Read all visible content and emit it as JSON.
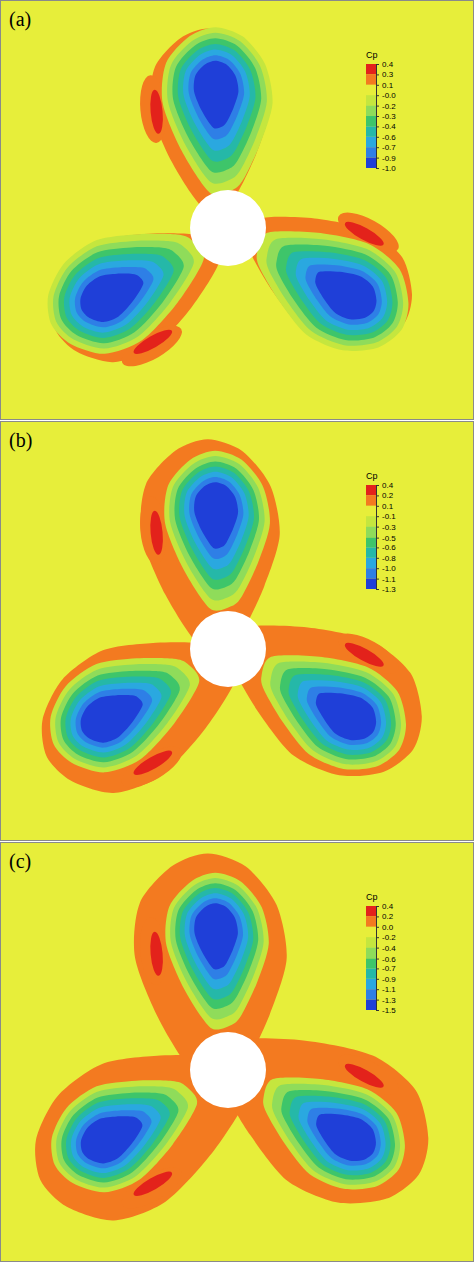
{
  "chart_data": [
    {
      "type": "contour",
      "label": "(a)",
      "colorbar": {
        "title": "Cp",
        "range": [
          -1.0,
          0.4
        ],
        "ticks": [
          0.4,
          {
            "value": 0.26,
            "label": "0.3"
          },
          {
            "value": 0.12,
            "label": "0.1"
          },
          {
            "value": -0.02,
            "label": "-0.0"
          },
          {
            "value": -0.16,
            "label": "-0.2"
          },
          -0.3,
          {
            "value": -0.44,
            "label": "-0.4"
          },
          {
            "value": -0.58,
            "label": "-0.6"
          },
          {
            "value": -0.72,
            "label": "-0.7"
          },
          {
            "value": -0.86,
            "label": "-0.9"
          },
          {
            "value": -1.0,
            "label": "-1.0"
          }
        ]
      },
      "field": {
        "ambient": 0.0,
        "halo": 0.2,
        "stagnation": 0.4,
        "suction_min": -1.0
      }
    },
    {
      "type": "contour",
      "label": "(b)",
      "colorbar": {
        "title": "Cp",
        "range": [
          -1.3,
          0.4
        ],
        "ticks": [
          0.4,
          {
            "value": 0.23,
            "label": "0.2"
          },
          {
            "value": 0.06,
            "label": "0.1"
          },
          {
            "value": -0.11,
            "label": "-0.1"
          },
          {
            "value": -0.28,
            "label": "-0.3"
          },
          {
            "value": -0.46,
            "label": "-0.5"
          },
          {
            "value": -0.62,
            "label": "-0.6"
          },
          {
            "value": -0.79,
            "label": "-0.8"
          },
          {
            "value": -0.96,
            "label": "-1.0"
          },
          {
            "value": -1.13,
            "label": "-1.1"
          },
          -1.3
        ]
      },
      "field": {
        "ambient": 0.0,
        "halo": 0.2,
        "stagnation": 0.4,
        "suction_min": -1.3
      }
    },
    {
      "type": "contour",
      "label": "(c)",
      "colorbar": {
        "title": "Cp",
        "range": [
          -1.5,
          0.4
        ],
        "ticks": [
          0.4,
          {
            "value": 0.21,
            "label": "0.2"
          },
          {
            "value": 0.02,
            "label": "0.0"
          },
          {
            "value": -0.17,
            "label": "-0.2"
          },
          {
            "value": -0.36,
            "label": "-0.4"
          },
          {
            "value": -0.56,
            "label": "-0.6"
          },
          {
            "value": -0.74,
            "label": "-0.7"
          },
          {
            "value": -0.93,
            "label": "-0.9"
          },
          {
            "value": -1.12,
            "label": "-1.1"
          },
          {
            "value": -1.31,
            "label": "-1.3"
          },
          -1.5
        ]
      },
      "field": {
        "ambient": 0.0,
        "halo": 0.2,
        "stagnation": 0.4,
        "suction_min": -1.5
      }
    }
  ]
}
